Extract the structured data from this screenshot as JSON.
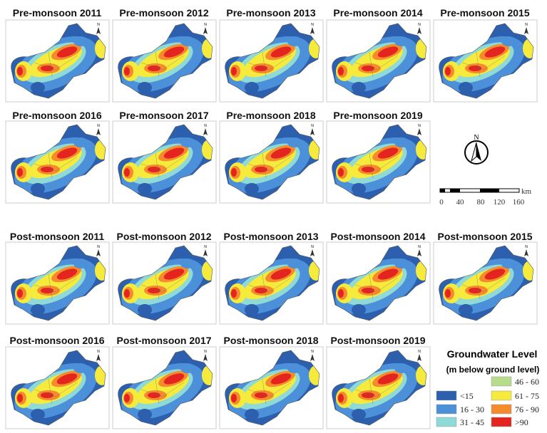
{
  "pre_monsoon": {
    "panels": [
      "Pre-monsoon 2011",
      "Pre-monsoon 2012",
      "Pre-monsoon 2013",
      "Pre-monsoon 2014",
      "Pre-monsoon 2015",
      "Pre-monsoon 2016",
      "Pre-monsoon 2017",
      "Pre-monsoon 2018",
      "Pre-monsoon 2019"
    ]
  },
  "post_monsoon": {
    "panels": [
      "Post-monsoon 2011",
      "Post-monsoon 2012",
      "Post-monsoon 2013",
      "Post-monsoon 2014",
      "Post-monsoon 2015",
      "Post-monsoon 2016",
      "Post-monsoon 2017",
      "Post-monsoon 2018",
      "Post-monsoon 2019"
    ]
  },
  "north_arrow": "N",
  "scale_bar": {
    "labels": [
      "0",
      "40",
      "80",
      "120",
      "160"
    ],
    "unit": "km"
  },
  "legend": {
    "title": "Groundwater Level",
    "subtitle": "(m below ground level)",
    "items": [
      {
        "label": "<15",
        "color": "#2c5fad"
      },
      {
        "label": "16 - 30",
        "color": "#4b90d8"
      },
      {
        "label": "31 - 45",
        "color": "#8fd9d6"
      },
      {
        "label": "46 - 60",
        "color": "#b7dc8c"
      },
      {
        "label": "61 - 75",
        "color": "#f6ea3c"
      },
      {
        "label": "76 - 90",
        "color": "#f58b2c"
      },
      {
        "label": ">90",
        "color": "#e3241f"
      }
    ]
  }
}
